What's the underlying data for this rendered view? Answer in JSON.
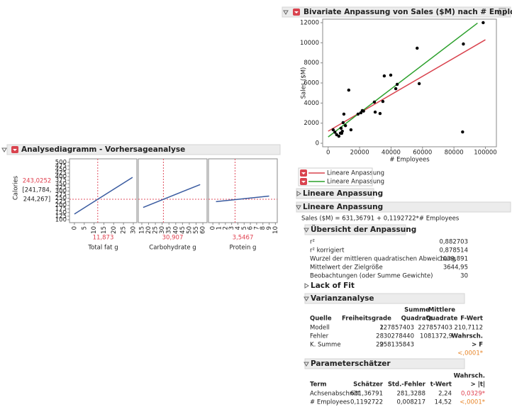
{
  "profiler": {
    "title": "Analysediagramm - Vorhersageanalyse",
    "y_label": "Calories",
    "prediction": {
      "value": 243.0252,
      "label": "243,0252"
    },
    "interval": [
      "[241,784,",
      "244,267]"
    ]
  },
  "chart_data": [
    {
      "type": "line",
      "x_label": "Total fat g",
      "current": {
        "value": 11.873,
        "label": "11,873"
      },
      "x": [
        0,
        29.6
      ],
      "values": [
        140,
        395
      ],
      "color": "#3a5ba0",
      "xlim": [
        -2.5,
        31.8
      ],
      "xticks": [
        0,
        5,
        10,
        15,
        20,
        25,
        30
      ],
      "ylim": [
        80,
        524
      ],
      "yticks": [
        100,
        125,
        150,
        175,
        200,
        225,
        250,
        275,
        300,
        325,
        350,
        375,
        400,
        425,
        450,
        475,
        500
      ]
    },
    {
      "type": "line",
      "x_label": "Carbohydrate g",
      "current": {
        "value": 30.907,
        "label": "30,907"
      },
      "x": [
        16,
        58
      ],
      "values": [
        186,
        345
      ],
      "color": "#3a5ba0",
      "xlim": [
        12.4,
        63.1
      ],
      "xticks": [
        15,
        20,
        25,
        30,
        35,
        40,
        45,
        50,
        55,
        60
      ],
      "ylim": [
        80,
        524
      ]
    },
    {
      "type": "line",
      "x_label": "Protein g",
      "current": {
        "value": 3.5467,
        "label": "3,5467"
      },
      "x": [
        0.5,
        9
      ],
      "values": [
        226,
        265
      ],
      "color": "#3a5ba0",
      "xlim": [
        -0.7,
        10.3
      ],
      "xticks": [
        0,
        1,
        2,
        3,
        4,
        5,
        6,
        7,
        8,
        9,
        10
      ],
      "ylim": [
        80,
        524
      ]
    },
    {
      "type": "scatter",
      "title": "Bivariate Anpassung von Sales ($M) nach # Employees",
      "x_label": "# Employees",
      "y_label": "Sales ($M)",
      "color": "#000000",
      "x": [
        3200,
        5400,
        6800,
        8600,
        9500,
        7800,
        9000,
        10000,
        13100,
        14500,
        19000,
        20800,
        21700,
        29400,
        29900,
        33000,
        34800,
        35700,
        39800,
        43000,
        43900,
        56600,
        57900,
        86000,
        85500,
        98600,
        8200,
        11000,
        4300,
        22500
      ],
      "values": [
        1340,
        850,
        700,
        990,
        2050,
        1000,
        1200,
        2900,
        5290,
        1340,
        2900,
        3030,
        3250,
        4100,
        3100,
        2960,
        4160,
        6700,
        6780,
        5430,
        5860,
        9460,
        5930,
        9880,
        1130,
        12000,
        1500,
        1750,
        1100,
        3200
      ],
      "xlim": [
        -3500,
        107000
      ],
      "ylim": [
        -350,
        12350
      ],
      "xticks": [
        0,
        20000,
        40000,
        60000,
        80000,
        100000
      ],
      "yticks": [
        0,
        2000,
        4000,
        6000,
        8000,
        10000,
        12000
      ],
      "fits": [
        {
          "name": "Lineare Anpassung",
          "color": "#d9434e",
          "x": [
            0,
            100000
          ],
          "values": [
            1200,
            10300
          ]
        },
        {
          "name": "Lineare Anpassung",
          "color": "#2ca02c",
          "x": [
            0,
            95000
          ],
          "values": [
            631,
            11958
          ]
        }
      ]
    }
  ],
  "report": {
    "fit_collapsed": "Lineare Anpassung",
    "fit_expanded": "Lineare Anpassung",
    "equation": "Sales ($M) = 631,36791 + 0,1192722*# Employees",
    "summary": {
      "title": "Übersicht der Anpassung",
      "rows": [
        [
          "r²",
          "0,882703"
        ],
        [
          "r² korrigiert",
          "0,878514"
        ],
        [
          "Wurzel der mittleren quadratischen Abweichung",
          "1039,891"
        ],
        [
          "Mittelwert der Zielgröße",
          "3644,95"
        ],
        [
          "Beobachtungen (oder Summe Gewichte)",
          "30"
        ]
      ]
    },
    "lack_of_fit": "Lack of Fit",
    "anova": {
      "title": "Varianzanalyse",
      "header_top": [
        "Summe",
        "Mittlere"
      ],
      "header": [
        "Quelle",
        "Freiheitsgrade",
        "Quadrate",
        "Quadrate",
        "F-Wert"
      ],
      "rows": [
        [
          "Modell",
          "1",
          "227857403",
          "227857403",
          "210,7112"
        ],
        [
          "Fehler",
          "28",
          "30278440",
          "1081372,9"
        ],
        [
          "K. Summe",
          "29",
          "258135843"
        ]
      ],
      "f_header": [
        "Wahrsch.",
        "> F"
      ],
      "p_value": "<,0001*"
    },
    "params": {
      "title": "Parameterschätzer",
      "header_top": "Wahrsch.",
      "header": [
        "Term",
        "Schätzer",
        "Std.-Fehler",
        "t-Wert",
        "> |t|"
      ],
      "rows": [
        [
          "Achsenabschnitt",
          "631,36791",
          "281,3288",
          "2,24",
          "0,0329*"
        ],
        [
          "# Employees",
          "0,1192722",
          "0,008217",
          "14,52",
          "<,0001*"
        ]
      ]
    }
  }
}
